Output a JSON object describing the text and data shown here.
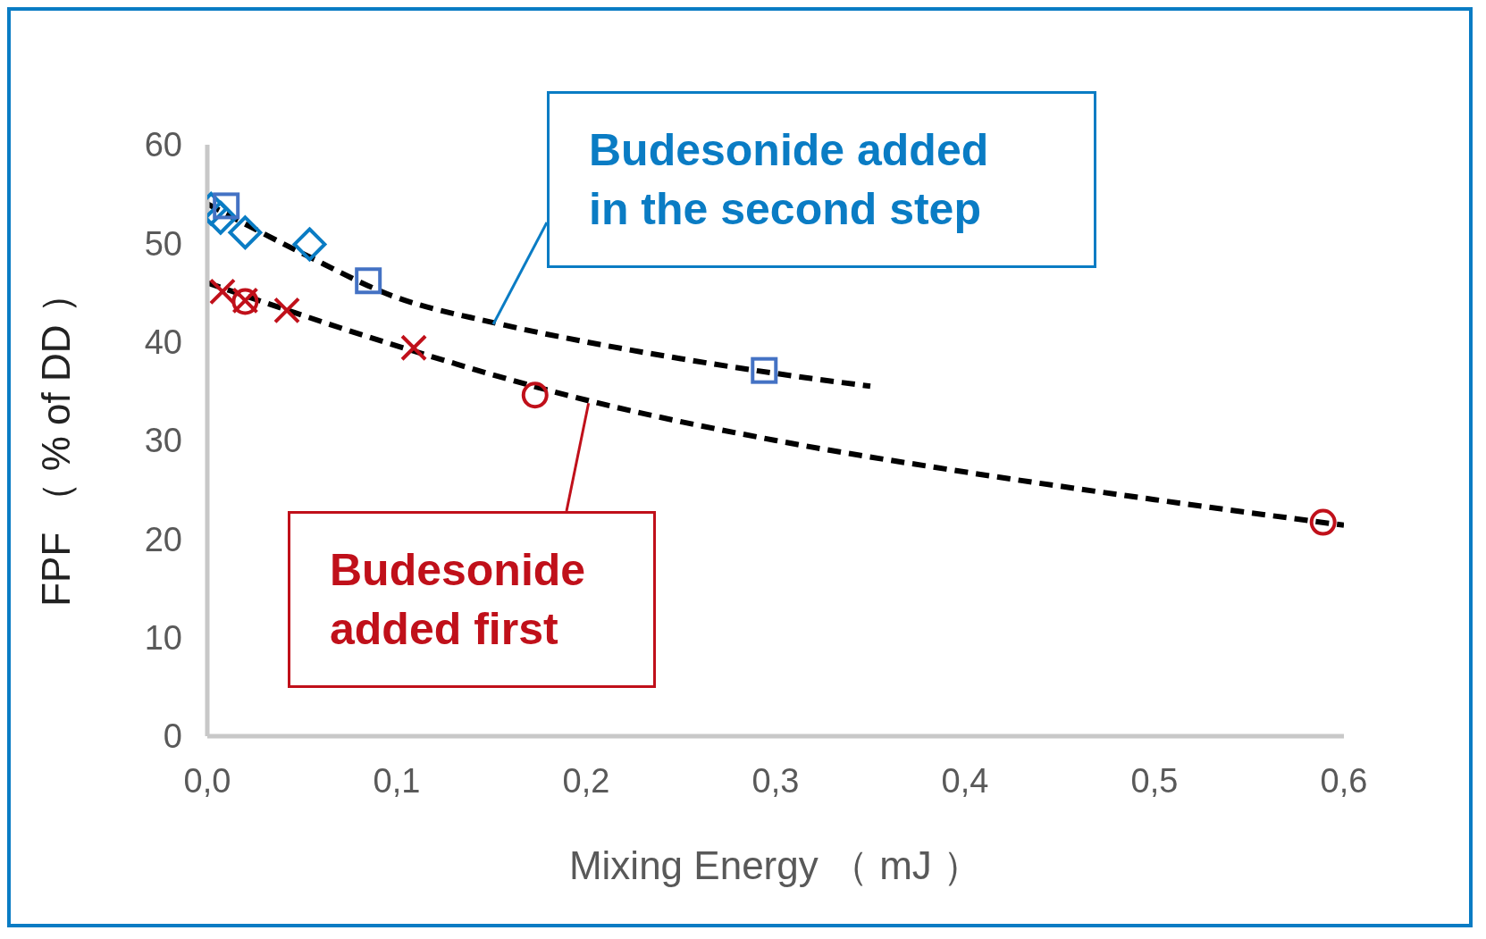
{
  "chart_data": {
    "type": "scatter",
    "xlabel": "Mixing Energy （ mJ ）",
    "ylabel": "FPF （ % of DD ）",
    "xlim": [
      0,
      0.6
    ],
    "xticks": [
      {
        "value": 0,
        "label": "0,0"
      },
      {
        "value": 0.1,
        "label": "0,1"
      },
      {
        "value": 0.2,
        "label": "0,2"
      },
      {
        "value": 0.3,
        "label": "0,3"
      },
      {
        "value": 0.4,
        "label": "0,4"
      },
      {
        "value": 0.5,
        "label": "0,5"
      },
      {
        "value": 0.6,
        "label": "0,6"
      }
    ],
    "ylim": [
      0,
      60
    ],
    "yticks": [
      0,
      10,
      20,
      30,
      40,
      50,
      60
    ],
    "grid": false,
    "legend": false,
    "series": [
      {
        "marker": "diamond",
        "color": "#0a7cc4",
        "x": [
          0.002,
          0.007,
          0.02,
          0.054
        ],
        "values": [
          53.5,
          52.6,
          51.1,
          49.9
        ]
      },
      {
        "marker": "square",
        "color": "#4472c4",
        "x": [
          0.01,
          0.085,
          0.294
        ],
        "values": [
          53.8,
          46.2,
          37.1
        ]
      },
      {
        "marker": "cross",
        "color": "#c0101a",
        "x": [
          0.008,
          0.02,
          0.042,
          0.109
        ],
        "values": [
          45.1,
          44.2,
          43.2,
          39.4
        ]
      },
      {
        "marker": "circle",
        "color": "#c0101a",
        "x": [
          0.02,
          0.173,
          0.589
        ],
        "values": [
          44.1,
          34.6,
          21.7
        ]
      },
      {
        "type": "line",
        "marker": "none",
        "line_style": "dashed",
        "color": "#000000",
        "x": [
          0,
          0.05,
          0.1,
          0.15,
          0.2,
          0.25,
          0.3,
          0.35
        ],
        "values": [
          54,
          49,
          44.5,
          42,
          40,
          38.3,
          36.8,
          35.5
        ]
      },
      {
        "type": "line",
        "marker": "none",
        "line_style": "dashed",
        "color": "#000000",
        "x": [
          0,
          0.1,
          0.2,
          0.3,
          0.4,
          0.5,
          0.6
        ],
        "values": [
          46,
          39.6,
          34.1,
          30,
          26.8,
          24,
          21.4
        ]
      }
    ],
    "annotations": [
      {
        "text": "Budesonide added in the second step",
        "x": 0.15,
        "y": 42
      },
      {
        "text": "Budesonide added first",
        "x": 0.2,
        "y": 34.1
      }
    ]
  }
}
